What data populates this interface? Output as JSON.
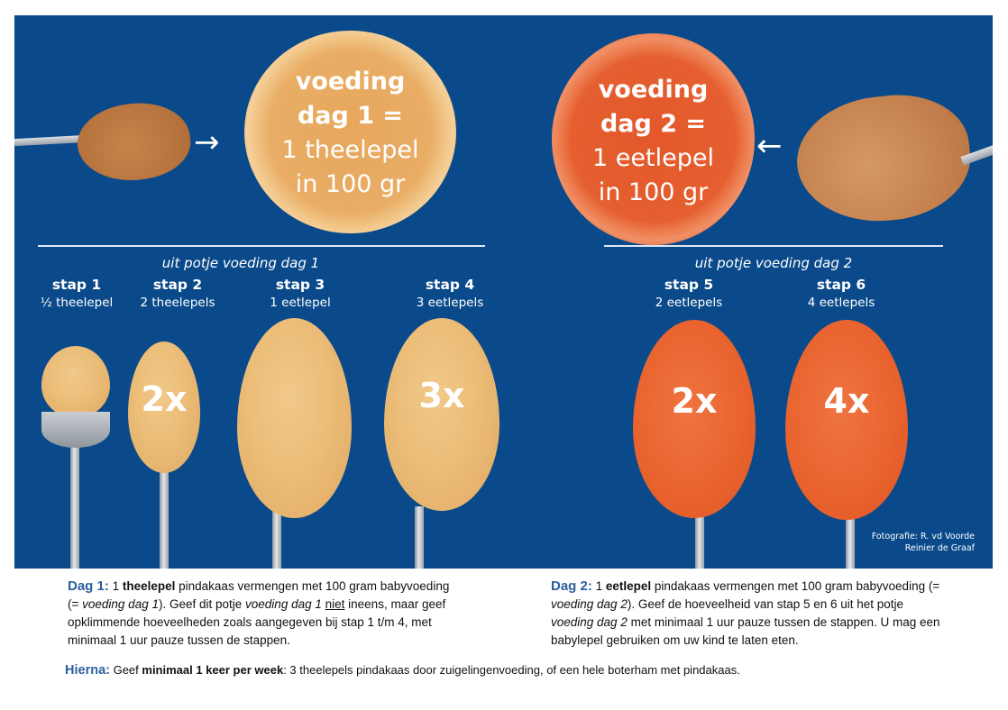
{
  "colors": {
    "panel_background": "#0b4a8a",
    "label_blue": "#2c5f9e",
    "text_white": "#ffffff"
  },
  "top": {
    "jar_day1": {
      "line1": "voeding",
      "line2": "dag 1 =",
      "line3": "1 theelepel",
      "line4": "in 100 gr"
    },
    "jar_day2": {
      "line1": "voeding",
      "line2": "dag 2 =",
      "line3": "1 eetlepel",
      "line4": "in 100 gr"
    },
    "arrow_right": "→",
    "arrow_left": "←"
  },
  "sections": [
    {
      "subtitle": "uit potje voeding dag 1",
      "steps": [
        {
          "title": "stap 1",
          "amount": "½ theelepel",
          "multiplier": ""
        },
        {
          "title": "stap 2",
          "amount": "2 theelepels",
          "multiplier": "2x"
        },
        {
          "title": "stap 3",
          "amount": "1 eetlepel",
          "multiplier": ""
        },
        {
          "title": "stap 4",
          "amount": "3 eetlepels",
          "multiplier": "3x"
        }
      ]
    },
    {
      "subtitle": "uit potje voeding dag 2",
      "steps": [
        {
          "title": "stap 5",
          "amount": "2 eetlepels",
          "multiplier": "2x"
        },
        {
          "title": "stap 6",
          "amount": "4 eetlepels",
          "multiplier": "4x"
        }
      ]
    }
  ],
  "credit": {
    "line1": "Fotografie: R. vd Voorde",
    "line2": "Reinier de Graaf"
  },
  "instructions": {
    "day1": {
      "label": "Dag 1:",
      "p1": " 1 ",
      "b1": "theelepel",
      "p2": " pindakaas vermengen met 100 gram babyvoeding",
      "p3": "(= ",
      "i1": "voeding dag 1",
      "p4": "). Geef dit potje ",
      "i2": "voeding dag 1",
      "p5": " ",
      "u1": "niet",
      "p6": " ineens, maar geef",
      "p7": "opklimmende hoeveelheden zoals aangegeven bij stap 1 t/m 4, met",
      "p8": "minimaal 1 uur pauze tussen de stappen."
    },
    "day2": {
      "label": "Dag 2:",
      "p1": " 1 ",
      "b1": "eetlepel",
      "p2": " pindakaas vermengen met 100 gram babyvoeding (=",
      "i1": "voeding dag 2",
      "p3": "). Geef de hoeveelheid van stap 5 en 6 uit het potje",
      "i2": "voeding dag 2",
      "p4": " met minimaal 1 uur pauze tussen de stappen. U mag een",
      "p5": "babylepel gebruiken om uw kind te laten eten."
    },
    "after": {
      "label": "Hierna:",
      "p1": " Geef ",
      "b1": "minimaal 1 keer per week",
      "p2": ": 3 theelepels pindakaas door zuigelingenvoeding, of een hele boterham met pindakaas."
    }
  }
}
